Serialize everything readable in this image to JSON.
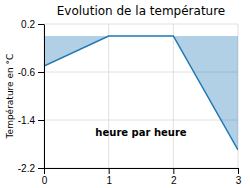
{
  "chart_data": {
    "type": "area",
    "title": "Evolution de la température",
    "y_label": "Température en °C",
    "annotation": "heure par heure",
    "x": [
      0,
      1,
      2,
      3
    ],
    "values": [
      -0.5,
      0.0,
      0.0,
      -1.9
    ],
    "baseline": 0.0,
    "xlim": [
      0,
      3
    ],
    "xticks": [
      0,
      1,
      2,
      3
    ],
    "ylim": [
      -2.2,
      0.2
    ],
    "yticks": [
      0.2,
      -0.6,
      -1.4,
      -2.2
    ],
    "grid": true
  }
}
